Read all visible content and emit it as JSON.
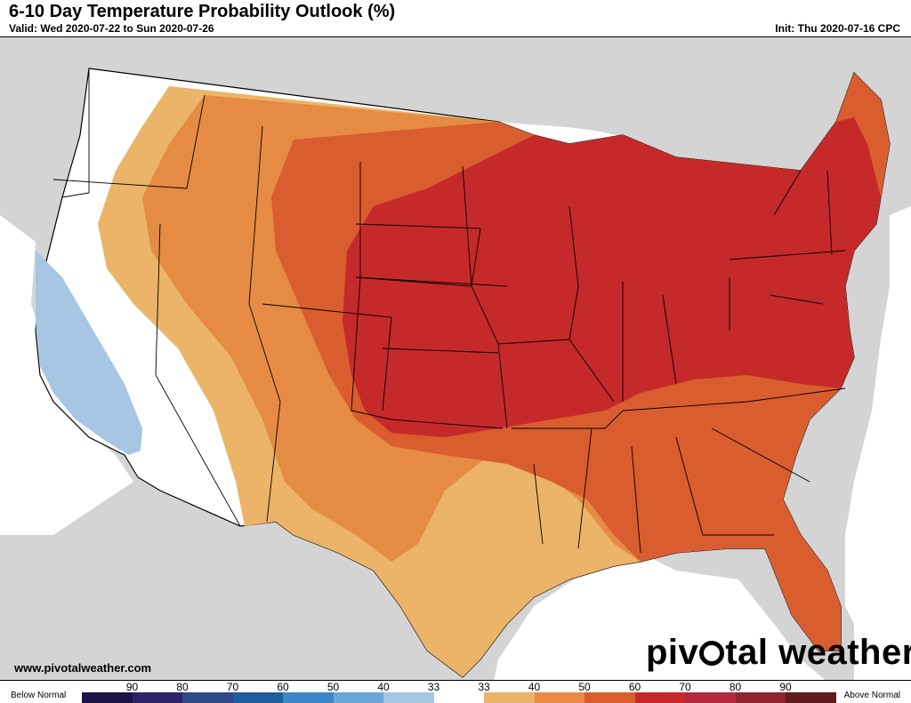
{
  "header": {
    "title": "6-10 Day Temperature Probability Outlook (%)",
    "valid": "Valid: Wed 2020-07-22 to Sun 2020-07-26",
    "init": "Init: Thu 2020-07-16 CPC"
  },
  "footer": {
    "url": "www.pivotalweather.com",
    "logo_text_before": "piv",
    "logo_text_after": "tal weather"
  },
  "legend": {
    "below_label": "Below Normal",
    "above_label": "Above Normal",
    "ticks": [
      "90",
      "80",
      "70",
      "60",
      "50",
      "40",
      "33",
      "33",
      "40",
      "50",
      "60",
      "70",
      "80",
      "90"
    ],
    "colors": [
      "#1a1447",
      "#2c2467",
      "#2f4a86",
      "#1f5e9c",
      "#3c86c6",
      "#6aa6d8",
      "#a6c6e4",
      "#ffffff",
      "#ebb468",
      "#e58b43",
      "#d95d2f",
      "#c6292a",
      "#b32a3c",
      "#8c2530",
      "#5e1c1f"
    ]
  },
  "map": {
    "category_colors": {
      "below_33": "#a6c6e4",
      "near_normal": "#ffffff",
      "above_33": "#ebb468",
      "above_40": "#e58b43",
      "above_50": "#d95d2f",
      "above_60": "#c6292a",
      "land_outside": "#d4d4d4",
      "water": "#ffffff"
    }
  }
}
